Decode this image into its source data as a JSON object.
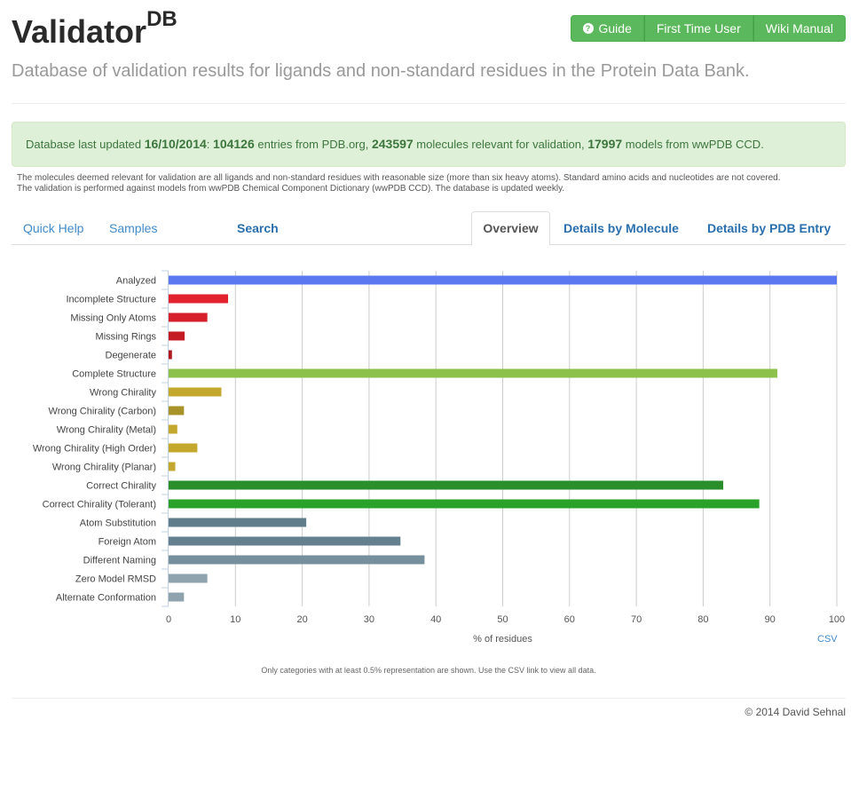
{
  "header": {
    "title": "Validator",
    "title_sup": "DB",
    "subtitle": "Database of validation results for ligands and non-standard residues in the Protein Data Bank.",
    "buttons": {
      "guide": "Guide",
      "first_time": "First Time User",
      "wiki": "Wiki Manual"
    }
  },
  "alert": {
    "prefix": "Database last updated ",
    "date": "16/10/2014",
    "sep": ": ",
    "entries": "104126",
    "entries_text": " entries from PDB.org, ",
    "molecules": "243597",
    "molecules_text": " molecules relevant for validation, ",
    "models": "17997",
    "models_text": " models from wwPDB CCD."
  },
  "notes": {
    "line1": "The molecules deemed relevant for validation are all ligands and non-standard residues with reasonable size (more than six heavy atoms). Standard amino acids and nucleotides are not covered.",
    "line2": "The validation is performed against models from wwPDB Chemical Component Dictionary (wwPDB CCD). The database is updated weekly."
  },
  "tabs": {
    "quick_help": "Quick Help",
    "samples": "Samples",
    "search": "Search",
    "overview": "Overview",
    "by_molecule": "Details by Molecule",
    "by_pdb": "Details by PDB Entry"
  },
  "chart_data": {
    "type": "bar",
    "orientation": "horizontal",
    "xlabel": "% of residues",
    "xlim": [
      0,
      100
    ],
    "xticks": [
      0,
      10,
      20,
      30,
      40,
      50,
      60,
      70,
      80,
      90,
      100
    ],
    "grid": true,
    "categories": [
      "Analyzed",
      "Incomplete Structure",
      "Missing Only Atoms",
      "Missing Rings",
      "Degenerate",
      "Complete Structure",
      "Wrong Chirality",
      "Wrong Chirality (Carbon)",
      "Wrong Chirality (Metal)",
      "Wrong Chirality (High Order)",
      "Wrong Chirality (Planar)",
      "Correct Chirality",
      "Correct Chirality (Tolerant)",
      "Atom Substitution",
      "Foreign Atom",
      "Different Naming",
      "Zero Model RMSD",
      "Alternate Conformation"
    ],
    "values": [
      100,
      8.9,
      5.8,
      2.4,
      0.5,
      91.1,
      7.9,
      2.3,
      1.3,
      4.3,
      1.0,
      83.0,
      88.4,
      20.6,
      34.7,
      38.3,
      5.8,
      2.3
    ],
    "colors": [
      "#5b78f0",
      "#e3222f",
      "#d61f2b",
      "#c41a24",
      "#b0161e",
      "#8cc14c",
      "#c4a82e",
      "#a8922a",
      "#c4a82e",
      "#c4a82e",
      "#c4a82e",
      "#2a8f2a",
      "#2aa22a",
      "#5f7d8a",
      "#647f8d",
      "#75909c",
      "#8ea3ad",
      "#8ea3ad"
    ]
  },
  "chart_links": {
    "csv": "CSV",
    "note": "Only categories with at least 0.5% representation are shown. Use the CSV link to view all data."
  },
  "footer": {
    "copyright": "© 2014 David Sehnal"
  }
}
